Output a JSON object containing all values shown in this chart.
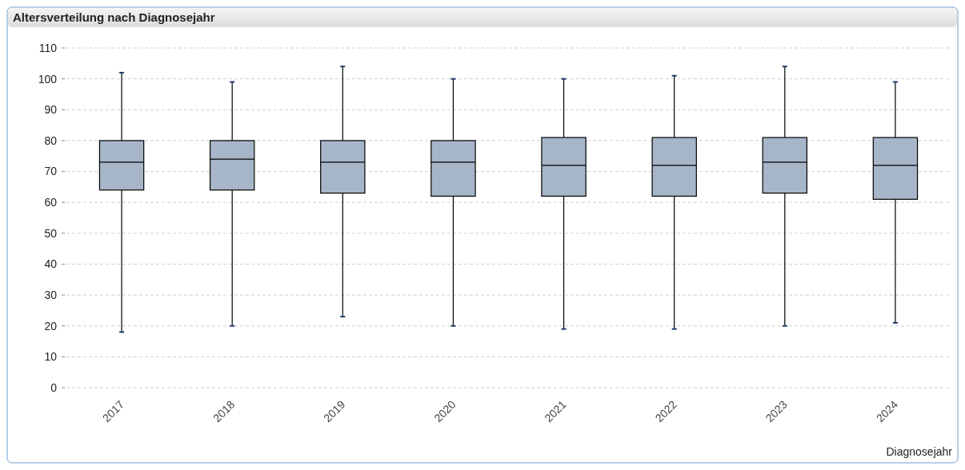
{
  "chart_data": {
    "type": "box",
    "title": "Altersverteilung nach Diagnosejahr",
    "xlabel": "Diagnosejahr",
    "categories": [
      "2017",
      "2018",
      "2019",
      "2020",
      "2021",
      "2022",
      "2023",
      "2024"
    ],
    "color": "#a7b5c8",
    "boxes": [
      {
        "low": 18,
        "q1": 64,
        "median": 73,
        "q3": 80,
        "high": 102
      },
      {
        "low": 20,
        "q1": 64,
        "median": 74,
        "q3": 80,
        "high": 99
      },
      {
        "low": 23,
        "q1": 63,
        "median": 73,
        "q3": 80,
        "high": 104
      },
      {
        "low": 20,
        "q1": 62,
        "median": 73,
        "q3": 80,
        "high": 100
      },
      {
        "low": 19,
        "q1": 62,
        "median": 72,
        "q3": 81,
        "high": 100
      },
      {
        "low": 19,
        "q1": 62,
        "median": 72,
        "q3": 81,
        "high": 101
      },
      {
        "low": 20,
        "q1": 63,
        "median": 73,
        "q3": 81,
        "high": 104
      },
      {
        "low": 21,
        "q1": 61,
        "median": 72,
        "q3": 81,
        "high": 99
      }
    ],
    "ylim": [
      0,
      110
    ],
    "yticks": [
      0,
      10,
      20,
      30,
      40,
      50,
      60,
      70,
      80,
      90,
      100,
      110
    ],
    "grid": "y"
  }
}
